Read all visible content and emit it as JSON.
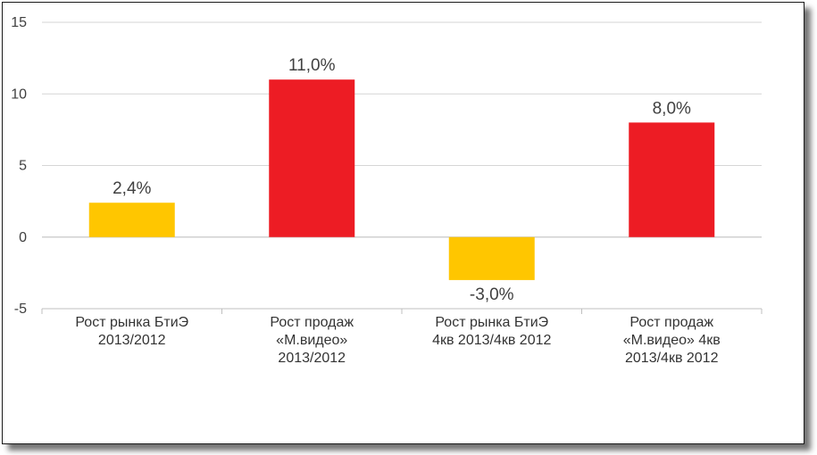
{
  "chart_data": {
    "type": "bar",
    "categories": [
      [
        "Рост рынка БтиЭ",
        "2013/2012"
      ],
      [
        "Рост продаж",
        "«М.видео»",
        "2013/2012"
      ],
      [
        "Рост рынка БтиЭ",
        "4кв 2013/4кв 2012"
      ],
      [
        "Рост продаж",
        "«М.видео» 4кв",
        "2013/4кв 2012"
      ]
    ],
    "values": [
      2.4,
      11.0,
      -3.0,
      8.0
    ],
    "data_labels": [
      "2,4%",
      "11,0%",
      "-3,0%",
      "8,0%"
    ],
    "bar_colors": [
      "#FFC600",
      "#ED1C24",
      "#FFC600",
      "#ED1C24"
    ],
    "ylim": [
      -5,
      15
    ],
    "yticks": [
      -5,
      0,
      5,
      10,
      15
    ],
    "ytick_labels": [
      "-5",
      "0",
      "5",
      "10",
      "15"
    ],
    "grid": true,
    "legend": "none",
    "title": "",
    "xlabel": "",
    "ylabel": ""
  }
}
